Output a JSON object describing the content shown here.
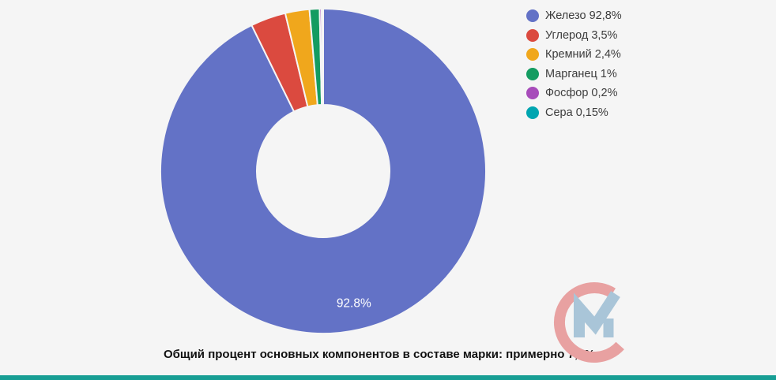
{
  "page": {
    "background_color": "#f5f5f5"
  },
  "chart_data": {
    "type": "pie",
    "subtype": "donut",
    "title": "",
    "categories": [
      "Железо",
      "Углерод",
      "Кремний",
      "Марганец",
      "Фосфор",
      "Сера"
    ],
    "slice_ids": [
      "iron",
      "carbon",
      "silicon",
      "manganese",
      "phosphorus",
      "sulfur"
    ],
    "values": [
      92.8,
      3.5,
      2.4,
      1,
      0.2,
      0.15
    ],
    "colors": [
      "#6372c6",
      "#db4a3f",
      "#f0a71c",
      "#149c61",
      "#a74cba",
      "#00a5b0"
    ],
    "slice_labels": [
      "92.8%",
      "",
      "",
      "",
      "",
      ""
    ],
    "legend_labels": [
      "Железо 92,8%",
      "Углерод 3,5%",
      "Кремний 2,4%",
      "Марганец 1%",
      "Фосфор 0,2%",
      "Сера 0,15%"
    ],
    "legend_position": "right",
    "start_angle_deg": 0,
    "direction": "clockwise",
    "slice_border_color": "#f5f5f5",
    "slice_label_color": "#ffffff"
  },
  "legend": {
    "text_color": "#3d3d3d"
  },
  "caption": {
    "text": "Общий процент основных компонентов в составе марки: примерно 7,2%"
  },
  "watermark": {
    "description": "CM logo",
    "c_color": "#e8a1a1",
    "m_color": "#a9c5d8"
  },
  "footer_bar": {
    "color": "#179e94"
  }
}
